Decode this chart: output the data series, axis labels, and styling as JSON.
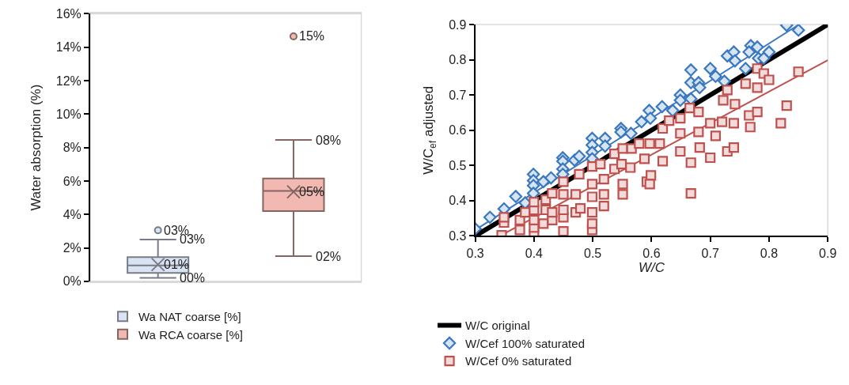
{
  "chart_data": [
    {
      "type": "box",
      "ylabel": "Water absorption (%)",
      "categories": [
        null,
        null
      ],
      "ylim": [
        0,
        16
      ],
      "yticks": [
        {
          "value": 0,
          "label": "0%"
        },
        {
          "value": 2,
          "label": "2%"
        },
        {
          "value": 4,
          "label": "4%"
        },
        {
          "value": 6,
          "label": "6%"
        },
        {
          "value": 8,
          "label": "8%"
        },
        {
          "value": 10,
          "label": "10%"
        },
        {
          "value": 12,
          "label": "12%"
        },
        {
          "value": 14,
          "label": "14%"
        },
        {
          "value": 16,
          "label": "16%"
        }
      ],
      "tick_labels": "y",
      "legend": "bottom",
      "series": [
        {
          "name": "Wa NAT coarse [%]",
          "color": "#dae3f3",
          "boxes": [
            {
              "low": 0.2,
              "q1": 0.5,
              "median": 0.95,
              "q3": 1.45,
              "high": 2.5,
              "mean": 1.0,
              "outliers": [
                3.05
              ]
            },
            null
          ]
        },
        {
          "name": "Wa RCA coarse [%]",
          "color": "#f2b9b2",
          "boxes": [
            null,
            {
              "low": 1.5,
              "q1": 4.2,
              "median": 5.4,
              "q3": 6.15,
              "high": 8.45,
              "mean": 5.35,
              "outliers": [
                14.65
              ]
            }
          ]
        }
      ],
      "annotations": [
        "01%",
        "03%",
        "03%",
        "00%",
        "05%",
        "15%",
        "08%",
        "02%"
      ]
    },
    {
      "type": "scatter",
      "xlabel": "W/C",
      "ylabel": "W/C$_{ef}$ adjusted",
      "xlim": [
        0.3,
        0.9
      ],
      "ylim": [
        0.3,
        0.9
      ],
      "xticks": [
        0.3,
        0.4,
        0.5,
        0.6,
        0.7,
        0.8,
        0.9
      ],
      "yticks": [
        0.3,
        0.4,
        0.5,
        0.6,
        0.7,
        0.8,
        0.9
      ],
      "legend": "bottom",
      "series": [
        {
          "name": "W/Cef 100% saturated",
          "color": "#3a78c0",
          "marker": "diamond",
          "x": [
            0.3,
            0.325,
            0.349,
            0.369,
            0.385,
            0.399,
            0.399,
            0.399,
            0.399,
            0.416,
            0.429,
            0.449,
            0.449,
            0.449,
            0.449,
            0.469,
            0.477,
            0.499,
            0.499,
            0.499,
            0.499,
            0.521,
            0.521,
            0.548,
            0.548,
            0.565,
            0.583,
            0.596,
            0.598,
            0.618,
            0.636,
            0.649,
            0.649,
            0.667,
            0.667,
            0.667,
            0.68,
            0.682,
            0.7,
            0.709,
            0.724,
            0.729,
            0.74,
            0.742,
            0.76,
            0.769,
            0.78,
            0.766,
            0.782,
            0.791,
            0.8,
            0.83,
            0.85
          ],
          "values": [
            0.32,
            0.353,
            0.377,
            0.412,
            0.394,
            0.475,
            0.457,
            0.443,
            0.421,
            0.454,
            0.465,
            0.522,
            0.512,
            0.49,
            0.475,
            0.515,
            0.526,
            0.577,
            0.558,
            0.537,
            0.519,
            0.577,
            0.555,
            0.605,
            0.595,
            0.591,
            0.624,
            0.656,
            0.634,
            0.667,
            0.656,
            0.7,
            0.685,
            0.689,
            0.771,
            0.735,
            0.735,
            0.721,
            0.775,
            0.753,
            0.739,
            0.811,
            0.822,
            0.797,
            0.775,
            0.84,
            0.836,
            0.822,
            0.804,
            0.804,
            0.822,
            0.898,
            0.884
          ]
        },
        {
          "name": "W/Cef 0% saturated",
          "color": "#c0504d",
          "marker": "square",
          "x": [
            0.345,
            0.349,
            0.349,
            0.376,
            0.376,
            0.385,
            0.4,
            0.4,
            0.4,
            0.4,
            0.4,
            0.416,
            0.42,
            0.42,
            0.431,
            0.431,
            0.431,
            0.45,
            0.45,
            0.45,
            0.45,
            0.45,
            0.471,
            0.471,
            0.477,
            0.479,
            0.499,
            0.499,
            0.499,
            0.499,
            0.499,
            0.499,
            0.513,
            0.519,
            0.519,
            0.519,
            0.537,
            0.537,
            0.551,
            0.551,
            0.551,
            0.549,
            0.566,
            0.564,
            0.579,
            0.588,
            0.592,
            0.597,
            0.599,
            0.597,
            0.619,
            0.619,
            0.63,
            0.614,
            0.649,
            0.649,
            0.649,
            0.665,
            0.667,
            0.667,
            0.68,
            0.68,
            0.682,
            0.7,
            0.7,
            0.709,
            0.72,
            0.722,
            0.729,
            0.729,
            0.74,
            0.74,
            0.742,
            0.76,
            0.766,
            0.768,
            0.78,
            0.78,
            0.78,
            0.791,
            0.8,
            0.82,
            0.83,
            0.85
          ],
          "values": [
            0.302,
            0.338,
            0.353,
            0.317,
            0.345,
            0.367,
            0.302,
            0.324,
            0.345,
            0.374,
            0.396,
            0.335,
            0.374,
            0.403,
            0.345,
            0.367,
            0.421,
            0.313,
            0.353,
            0.374,
            0.418,
            0.454,
            0.367,
            0.418,
            0.475,
            0.378,
            0.317,
            0.335,
            0.367,
            0.411,
            0.447,
            0.497,
            0.504,
            0.418,
            0.385,
            0.461,
            0.533,
            0.49,
            0.548,
            0.447,
            0.418,
            0.504,
            0.548,
            0.494,
            0.562,
            0.519,
            0.454,
            0.562,
            0.472,
            0.447,
            0.605,
            0.512,
            0.627,
            0.562,
            0.634,
            0.591,
            0.54,
            0.663,
            0.508,
            0.421,
            0.652,
            0.595,
            0.551,
            0.522,
            0.62,
            0.584,
            0.624,
            0.685,
            0.714,
            0.54,
            0.62,
            0.551,
            0.674,
            0.732,
            0.642,
            0.609,
            0.652,
            0.775,
            0.721,
            0.761,
            0.743,
            0.62,
            0.67,
            0.766
          ]
        },
        {
          "type": "line",
          "color": "#3a78c0",
          "x": [
            0.3,
            0.851
          ],
          "values": [
            0.317,
            0.9
          ]
        },
        {
          "type": "line",
          "color": "#c0504d",
          "x": [
            0.342,
            0.9
          ],
          "values": [
            0.3,
            0.799
          ]
        },
        {
          "type": "line",
          "name": "W/C original",
          "color": "#000000",
          "x": [
            0.3,
            0.9
          ],
          "values": [
            0.3,
            0.9
          ]
        }
      ]
    }
  ]
}
